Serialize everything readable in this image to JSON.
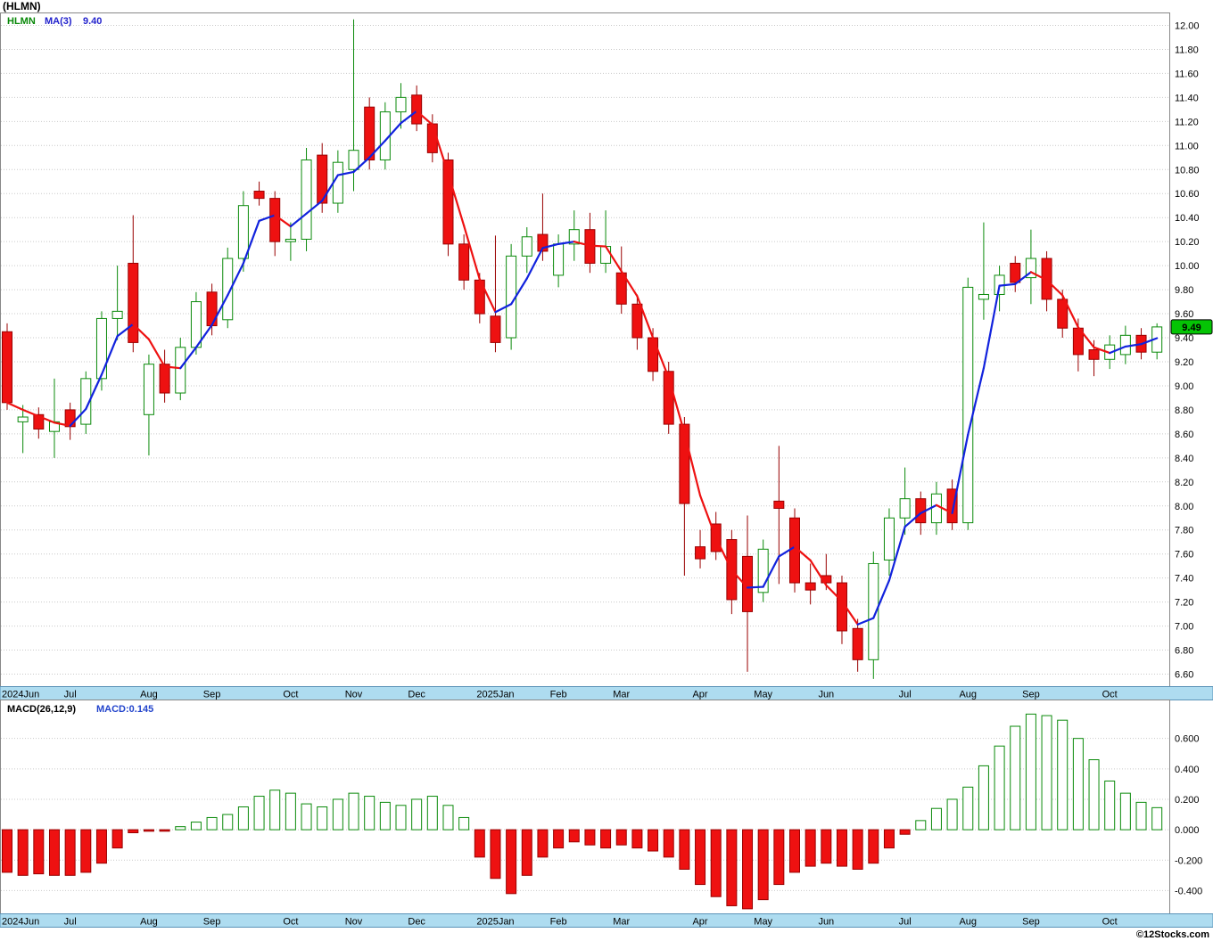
{
  "title": "(HLMN)",
  "watermark": "©12Stocks.com",
  "price_panel": {
    "legend": {
      "symbol": "HLMN",
      "ma_label": "MA(3)",
      "ma_value": "9.40"
    },
    "last_price_badge": "9.49"
  },
  "macd_panel": {
    "legend": {
      "label": "MACD(26,12,9)",
      "value": "MACD:0.145"
    }
  },
  "months": [
    {
      "label": "2024Jun",
      "i": 0
    },
    {
      "label": "Jul",
      "i": 4
    },
    {
      "label": "Aug",
      "i": 9
    },
    {
      "label": "Sep",
      "i": 13
    },
    {
      "label": "Oct",
      "i": 18
    },
    {
      "label": "Nov",
      "i": 22
    },
    {
      "label": "Dec",
      "i": 26
    },
    {
      "label": "2025Jan",
      "i": 31
    },
    {
      "label": "Feb",
      "i": 35
    },
    {
      "label": "Mar",
      "i": 39
    },
    {
      "label": "Apr",
      "i": 44
    },
    {
      "label": "May",
      "i": 48
    },
    {
      "label": "Jun",
      "i": 52
    },
    {
      "label": "Jul",
      "i": 57
    },
    {
      "label": "Aug",
      "i": 61
    },
    {
      "label": "Sep",
      "i": 65
    },
    {
      "label": "Oct",
      "i": 70
    }
  ],
  "colors": {
    "up_stroke": "#0a8a0a",
    "up_fill": "#ffffff",
    "down_stroke": "#990000",
    "down_fill": "#ee1111",
    "ma_up": "#1122dd",
    "ma_down": "#ee1111",
    "grid": "#c9c9c9",
    "axis_strip": "#aedcf0",
    "axis_strip_border": "#5b93b8",
    "badge_bg": "#05c405",
    "badge_border": "#000000",
    "badge_text": "#000000",
    "legend_symbol": "#088808",
    "legend_ma": "#2222cc",
    "macd_label": "#000000",
    "macd_value": "#2244cc"
  },
  "chart_data": [
    {
      "type": "candlestick",
      "title": "HLMN weekly candlesticks with MA(3)",
      "period": "weekly",
      "ylim": [
        6.5,
        12.1
      ],
      "yticks": [
        12.0,
        11.8,
        11.6,
        11.4,
        11.2,
        11.0,
        10.8,
        10.6,
        10.4,
        10.2,
        10.0,
        9.8,
        9.6,
        9.4,
        9.2,
        9.0,
        8.8,
        8.6,
        8.4,
        8.2,
        8.0,
        7.8,
        7.6,
        7.4,
        7.2,
        7.0,
        6.8,
        6.6
      ],
      "ma_period": 3,
      "ma_last": 9.4,
      "last_close": 9.49,
      "ohlc": [
        [
          9.45,
          9.52,
          8.8,
          8.86
        ],
        [
          8.7,
          8.84,
          8.44,
          8.74
        ],
        [
          8.76,
          8.82,
          8.56,
          8.64
        ],
        [
          8.62,
          9.06,
          8.4,
          8.7
        ],
        [
          8.8,
          8.86,
          8.55,
          8.66
        ],
        [
          8.68,
          9.12,
          8.6,
          9.06
        ],
        [
          9.06,
          9.62,
          8.96,
          9.56
        ],
        [
          9.56,
          10.0,
          9.38,
          9.62
        ],
        [
          10.02,
          10.42,
          9.28,
          9.36
        ],
        [
          8.76,
          9.26,
          8.42,
          9.18
        ],
        [
          9.18,
          9.3,
          8.86,
          8.94
        ],
        [
          8.94,
          9.4,
          8.88,
          9.32
        ],
        [
          9.32,
          9.78,
          9.26,
          9.7
        ],
        [
          9.78,
          9.85,
          9.42,
          9.5
        ],
        [
          9.55,
          10.15,
          9.48,
          10.06
        ],
        [
          10.06,
          10.62,
          9.95,
          10.5
        ],
        [
          10.62,
          10.7,
          10.5,
          10.56
        ],
        [
          10.56,
          10.62,
          10.08,
          10.2
        ],
        [
          10.2,
          10.36,
          10.04,
          10.22
        ],
        [
          10.22,
          10.98,
          10.12,
          10.88
        ],
        [
          10.92,
          11.02,
          10.44,
          10.52
        ],
        [
          10.52,
          10.96,
          10.44,
          10.86
        ],
        [
          10.8,
          12.05,
          10.62,
          10.96
        ],
        [
          11.32,
          11.4,
          10.8,
          10.88
        ],
        [
          10.88,
          11.36,
          10.8,
          11.28
        ],
        [
          11.28,
          11.52,
          11.14,
          11.4
        ],
        [
          11.42,
          11.5,
          11.12,
          11.18
        ],
        [
          11.18,
          11.26,
          10.86,
          10.94
        ],
        [
          10.88,
          10.94,
          10.08,
          10.18
        ],
        [
          10.18,
          10.26,
          9.8,
          9.88
        ],
        [
          9.88,
          9.94,
          9.52,
          9.6
        ],
        [
          9.58,
          10.25,
          9.28,
          9.36
        ],
        [
          9.4,
          10.18,
          9.3,
          10.08
        ],
        [
          10.08,
          10.32,
          9.94,
          10.24
        ],
        [
          10.26,
          10.6,
          10.04,
          10.12
        ],
        [
          9.92,
          10.26,
          9.82,
          10.18
        ],
        [
          10.18,
          10.46,
          10.04,
          10.3
        ],
        [
          10.3,
          10.44,
          9.94,
          10.02
        ],
        [
          10.02,
          10.46,
          9.94,
          10.16
        ],
        [
          9.94,
          10.16,
          9.6,
          9.68
        ],
        [
          9.68,
          9.76,
          9.3,
          9.4
        ],
        [
          9.4,
          9.48,
          9.04,
          9.12
        ],
        [
          9.12,
          9.2,
          8.6,
          8.68
        ],
        [
          8.68,
          8.74,
          7.42,
          8.02
        ],
        [
          7.66,
          7.8,
          7.48,
          7.56
        ],
        [
          7.85,
          7.95,
          7.55,
          7.62
        ],
        [
          7.72,
          7.8,
          7.1,
          7.22
        ],
        [
          7.58,
          7.92,
          6.62,
          7.12
        ],
        [
          7.28,
          7.72,
          7.2,
          7.64
        ],
        [
          8.04,
          8.5,
          7.35,
          7.98
        ],
        [
          7.9,
          7.98,
          7.28,
          7.36
        ],
        [
          7.36,
          7.52,
          7.18,
          7.3
        ],
        [
          7.42,
          7.6,
          7.3,
          7.36
        ],
        [
          7.36,
          7.42,
          6.85,
          6.96
        ],
        [
          6.98,
          7.06,
          6.62,
          6.72
        ],
        [
          6.72,
          7.62,
          6.56,
          7.52
        ],
        [
          7.55,
          7.98,
          7.42,
          7.9
        ],
        [
          7.9,
          8.32,
          7.76,
          8.06
        ],
        [
          8.06,
          8.12,
          7.76,
          7.86
        ],
        [
          7.86,
          8.2,
          7.76,
          8.1
        ],
        [
          8.14,
          8.22,
          7.8,
          7.86
        ],
        [
          7.86,
          9.9,
          7.8,
          9.82
        ],
        [
          9.72,
          10.36,
          9.55,
          9.76
        ],
        [
          9.76,
          10.0,
          9.62,
          9.92
        ],
        [
          10.02,
          10.08,
          9.78,
          9.86
        ],
        [
          9.9,
          10.3,
          9.68,
          10.06
        ],
        [
          10.06,
          10.12,
          9.62,
          9.72
        ],
        [
          9.72,
          9.8,
          9.4,
          9.48
        ],
        [
          9.48,
          9.56,
          9.12,
          9.26
        ],
        [
          9.3,
          9.38,
          9.08,
          9.22
        ],
        [
          9.22,
          9.42,
          9.14,
          9.34
        ],
        [
          9.26,
          9.5,
          9.18,
          9.42
        ],
        [
          9.42,
          9.48,
          9.22,
          9.28
        ],
        [
          9.28,
          9.52,
          9.22,
          9.49
        ]
      ]
    },
    {
      "type": "bar",
      "title": "MACD(26,12,9) histogram",
      "ylim": [
        -0.55,
        0.85
      ],
      "yticks": [
        0.6,
        0.4,
        0.2,
        0.0,
        -0.2,
        -0.4
      ],
      "last": 0.145,
      "values": [
        -0.28,
        -0.3,
        -0.29,
        -0.3,
        -0.3,
        -0.28,
        -0.22,
        -0.12,
        -0.02,
        -0.01,
        -0.01,
        0.02,
        0.05,
        0.08,
        0.1,
        0.15,
        0.22,
        0.26,
        0.24,
        0.17,
        0.15,
        0.2,
        0.24,
        0.22,
        0.18,
        0.16,
        0.2,
        0.22,
        0.16,
        0.08,
        -0.18,
        -0.32,
        -0.42,
        -0.3,
        -0.18,
        -0.12,
        -0.08,
        -0.1,
        -0.12,
        -0.1,
        -0.12,
        -0.14,
        -0.18,
        -0.26,
        -0.36,
        -0.44,
        -0.5,
        -0.52,
        -0.46,
        -0.36,
        -0.28,
        -0.24,
        -0.22,
        -0.24,
        -0.26,
        -0.22,
        -0.12,
        -0.03,
        0.06,
        0.14,
        0.2,
        0.28,
        0.42,
        0.55,
        0.68,
        0.76,
        0.75,
        0.72,
        0.6,
        0.46,
        0.32,
        0.24,
        0.18,
        0.145
      ]
    }
  ]
}
